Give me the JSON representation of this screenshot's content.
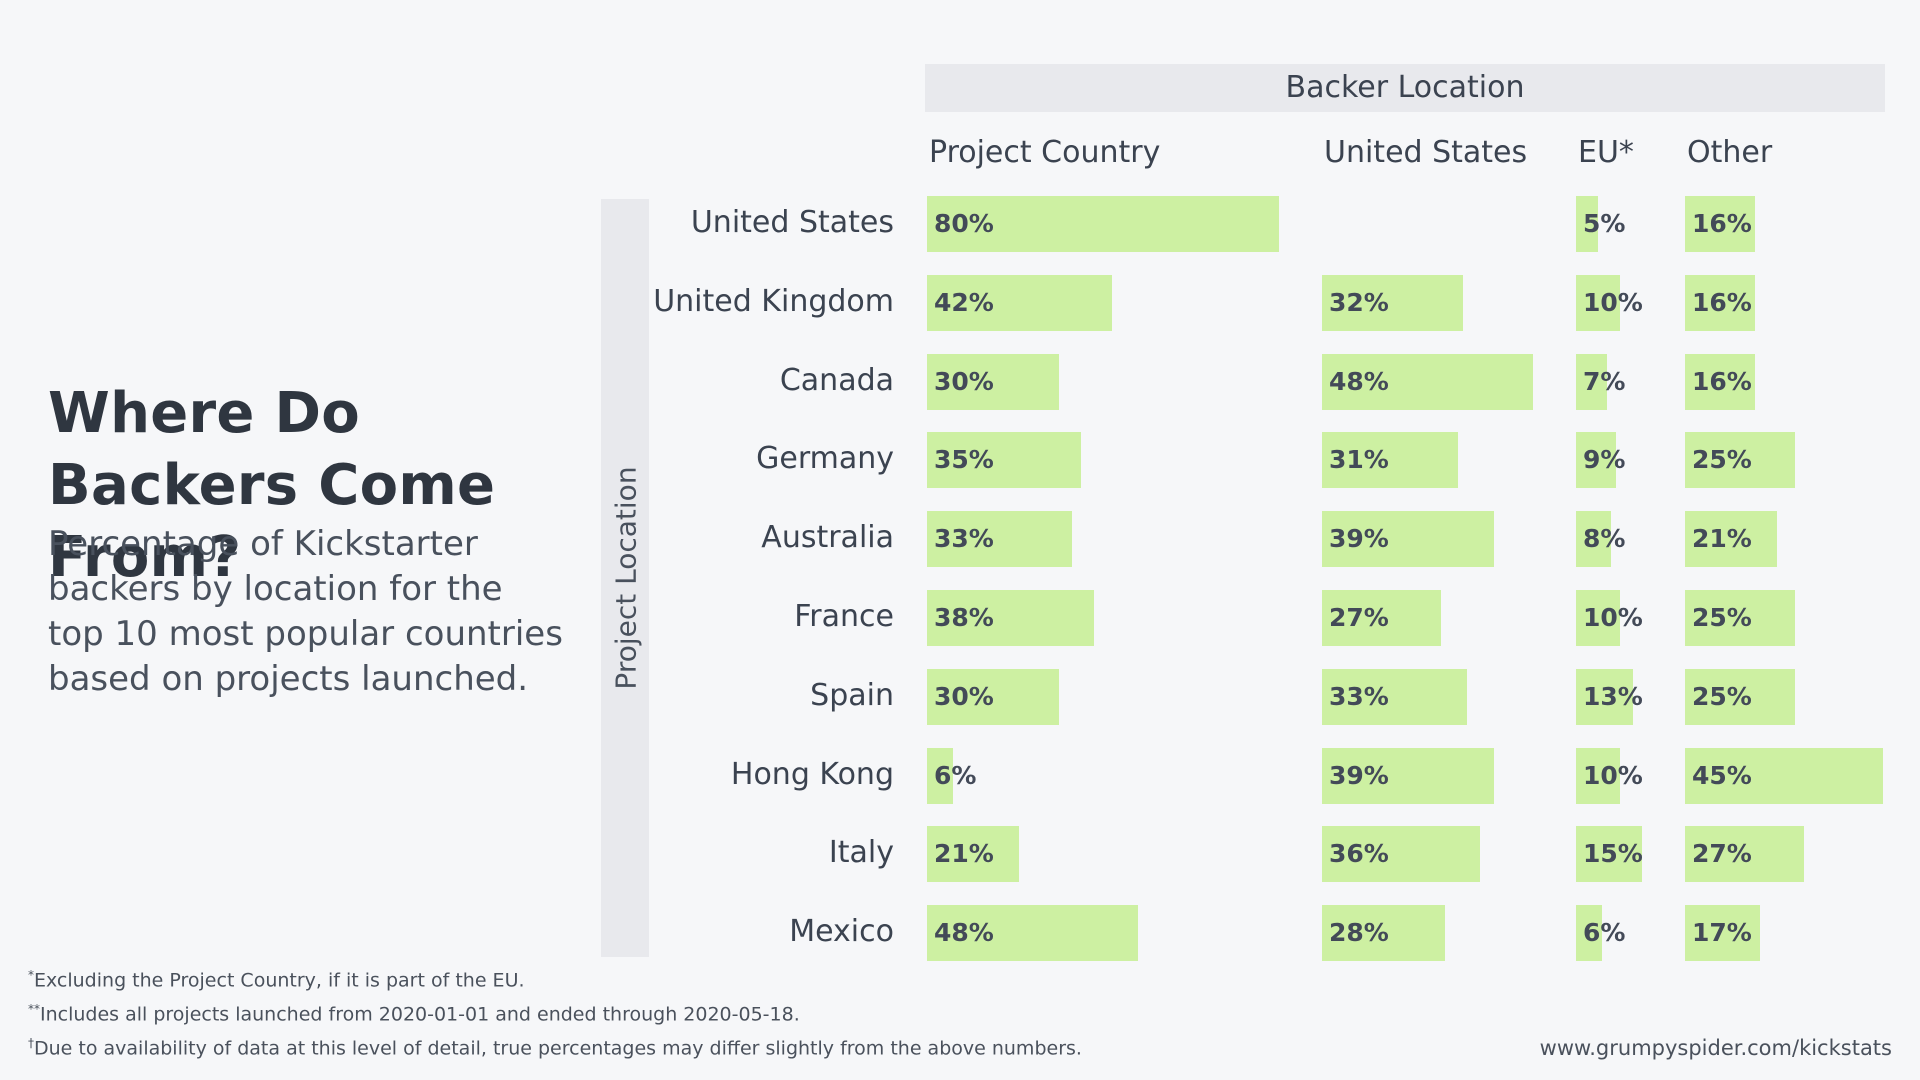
{
  "title": "Where Do Backers Come From?",
  "subtitle": "Percentage of Kickstarter backers by location for the top 10 most popular countries based on projects launched.",
  "row_axis_label": "Project Location",
  "column_group_label": "Backer Location",
  "footnotes": [
    {
      "mark": "*",
      "text": "Excluding the Project Country, if it is part of the EU."
    },
    {
      "mark": "**",
      "text": "Includes all projects launched from 2020-01-01 and ended through 2020-05-18."
    },
    {
      "mark": "†",
      "text": "Due to availability of data at this level of detail, true percentages may differ slightly from the above numbers."
    }
  ],
  "source": "www.grumpyspider.com/kickstats",
  "colors": {
    "bar": "#cdf0a2",
    "band": "#e8e9ed",
    "background": "#f6f7f9"
  },
  "chart_data": {
    "type": "bar",
    "title": "Where Do Backers Come From?",
    "categories": [
      "United States",
      "United Kingdom",
      "Canada",
      "Germany",
      "Australia",
      "France",
      "Spain",
      "Hong Kong",
      "Italy",
      "Mexico"
    ],
    "series": [
      {
        "name": "Project Country",
        "values": [
          80,
          42,
          30,
          35,
          33,
          38,
          30,
          6,
          21,
          48
        ]
      },
      {
        "name": "United States",
        "values": [
          null,
          32,
          48,
          31,
          39,
          27,
          33,
          39,
          36,
          28
        ]
      },
      {
        "name": "EU*",
        "values": [
          5,
          10,
          7,
          9,
          8,
          10,
          13,
          10,
          15,
          6
        ]
      },
      {
        "name": "Other",
        "values": [
          16,
          16,
          16,
          25,
          21,
          25,
          25,
          45,
          27,
          17
        ]
      }
    ],
    "value_suffix": "%",
    "xlim": [
      0,
      100
    ]
  }
}
